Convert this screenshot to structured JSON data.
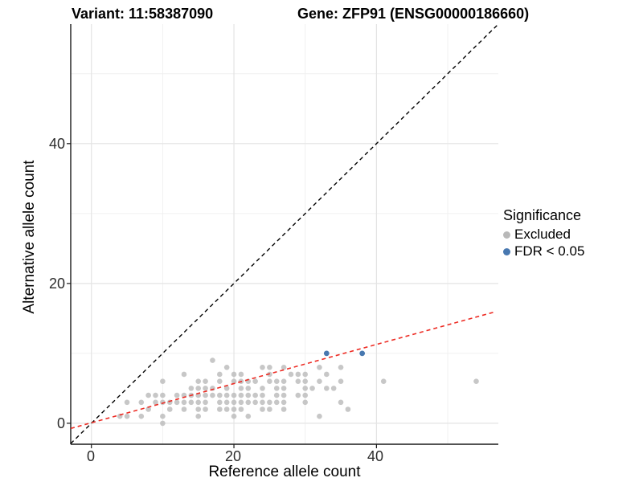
{
  "titles": {
    "variant": "Variant: 11:58387090",
    "gene": "Gene: ZFP91 (ENSG00000186660)"
  },
  "axes": {
    "x": {
      "label": "Reference allele count",
      "tick_labels": [
        "0",
        "20",
        "40"
      ]
    },
    "y": {
      "label": "Alternative allele count",
      "tick_labels": [
        "40",
        "20",
        "0"
      ]
    }
  },
  "legend": {
    "title": "Significance",
    "items": [
      {
        "label": "Excluded",
        "color": "#b9b9b9"
      },
      {
        "label": "FDR < 0.05",
        "color": "#4878b0"
      }
    ]
  },
  "chart_data": {
    "type": "scatter",
    "title": "Variant: 11:58387090 | Gene: ZFP91 (ENSG00000186660)",
    "xlabel": "Reference allele count",
    "ylabel": "Alternative allele count",
    "xlim": [
      -2.9,
      57.1
    ],
    "ylim": [
      -3.0,
      57.1
    ],
    "major_breaks": [
      0,
      20,
      40
    ],
    "minor_breaks": [
      10,
      30,
      50
    ],
    "grid": "on",
    "legend_position": "right",
    "colors": {
      "excluded": "#bdbdbd",
      "significant": "#4878b0",
      "identity_line": "#000000",
      "fit_line": "#ed2c24",
      "grid_major": "#e4e4e4",
      "grid_minor": "#f0f0f0",
      "axis_line": "#1a1a1a"
    },
    "series": [
      {
        "name": "Excluded",
        "points": [
          [
            10,
            0
          ],
          [
            4,
            1
          ],
          [
            5,
            1
          ],
          [
            7,
            1
          ],
          [
            10,
            1
          ],
          [
            15,
            1
          ],
          [
            20,
            1
          ],
          [
            22,
            1
          ],
          [
            32,
            1
          ],
          [
            8,
            2
          ],
          [
            11,
            2
          ],
          [
            13,
            2
          ],
          [
            15,
            2
          ],
          [
            16,
            2
          ],
          [
            18,
            2
          ],
          [
            19,
            2
          ],
          [
            20,
            2
          ],
          [
            21,
            2
          ],
          [
            24,
            2
          ],
          [
            25,
            2
          ],
          [
            27,
            2
          ],
          [
            36,
            2
          ],
          [
            5,
            3
          ],
          [
            7,
            3
          ],
          [
            9,
            3
          ],
          [
            10,
            3
          ],
          [
            11,
            3
          ],
          [
            12,
            3
          ],
          [
            13,
            3
          ],
          [
            14,
            3
          ],
          [
            15,
            3
          ],
          [
            16,
            3
          ],
          [
            18,
            3
          ],
          [
            19,
            3
          ],
          [
            20,
            3
          ],
          [
            21,
            3
          ],
          [
            22,
            3
          ],
          [
            23,
            3
          ],
          [
            24,
            3
          ],
          [
            25,
            3
          ],
          [
            26,
            3
          ],
          [
            27,
            3
          ],
          [
            30,
            3
          ],
          [
            35,
            3
          ],
          [
            8,
            4
          ],
          [
            9,
            4
          ],
          [
            10,
            4
          ],
          [
            12,
            4
          ],
          [
            13,
            4
          ],
          [
            14,
            4
          ],
          [
            15,
            4
          ],
          [
            16,
            4
          ],
          [
            17,
            4
          ],
          [
            18,
            4
          ],
          [
            19,
            4
          ],
          [
            20,
            4
          ],
          [
            21,
            4
          ],
          [
            22,
            4
          ],
          [
            23,
            4
          ],
          [
            24,
            4
          ],
          [
            26,
            4
          ],
          [
            27,
            4
          ],
          [
            29,
            4
          ],
          [
            30,
            4
          ],
          [
            14,
            5
          ],
          [
            15,
            5
          ],
          [
            16,
            5
          ],
          [
            17,
            5
          ],
          [
            19,
            5
          ],
          [
            21,
            5
          ],
          [
            22,
            5
          ],
          [
            24,
            5
          ],
          [
            26,
            5
          ],
          [
            27,
            5
          ],
          [
            30,
            5
          ],
          [
            31,
            5
          ],
          [
            33,
            5
          ],
          [
            34,
            5
          ],
          [
            10,
            6
          ],
          [
            15,
            6
          ],
          [
            16,
            6
          ],
          [
            18,
            6
          ],
          [
            20,
            6
          ],
          [
            21,
            6
          ],
          [
            22,
            6
          ],
          [
            23,
            6
          ],
          [
            25,
            6
          ],
          [
            26,
            6
          ],
          [
            27,
            6
          ],
          [
            29,
            6
          ],
          [
            30,
            6
          ],
          [
            32,
            6
          ],
          [
            35,
            6
          ],
          [
            41,
            6
          ],
          [
            54,
            6
          ],
          [
            13,
            7
          ],
          [
            18,
            7
          ],
          [
            20,
            7
          ],
          [
            21,
            7
          ],
          [
            25,
            7
          ],
          [
            28,
            7
          ],
          [
            29,
            7
          ],
          [
            30,
            7
          ],
          [
            33,
            7
          ],
          [
            19,
            8
          ],
          [
            24,
            8
          ],
          [
            25,
            8
          ],
          [
            27,
            8
          ],
          [
            32,
            8
          ],
          [
            35,
            8
          ],
          [
            17,
            9
          ]
        ]
      },
      {
        "name": "FDR < 0.05",
        "points": [
          [
            33,
            10
          ],
          [
            38,
            10
          ]
        ]
      }
    ],
    "lines": [
      {
        "name": "identity",
        "style": "dashed",
        "color_key": "identity_line",
        "x1": -2.9,
        "y1": -2.9,
        "x2": 57.1,
        "y2": 57.1
      },
      {
        "name": "regression-fit",
        "style": "dashed",
        "color_key": "fit_line",
        "x1": -2.9,
        "y1": -0.74,
        "x2": 56.5,
        "y2": 15.9
      }
    ]
  }
}
